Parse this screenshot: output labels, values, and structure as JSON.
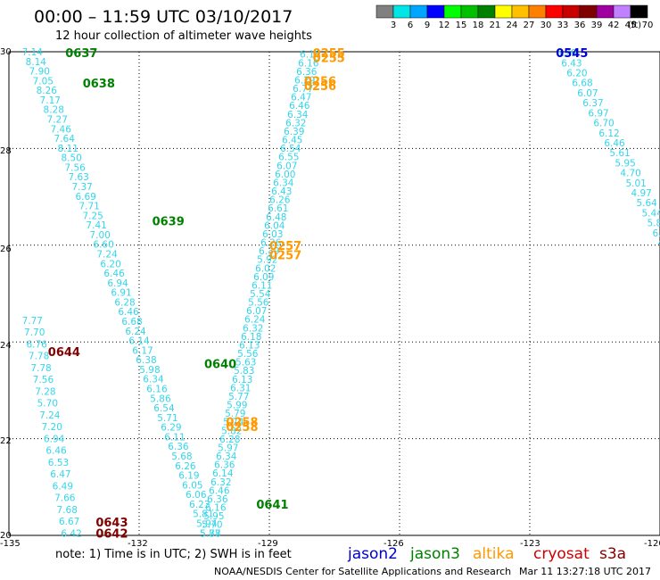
{
  "header": {
    "title": "00:00 – 11:59 UTC 03/10/2017",
    "subtitle": "12 hour collection of altimeter wave heights"
  },
  "colorbar": {
    "unit": "(ft)",
    "colors": [
      "#808080",
      "#00e5e5",
      "#00a5ff",
      "#0000ff",
      "#00ff00",
      "#00c000",
      "#008000",
      "#ffff00",
      "#ffc000",
      "#ff8000",
      "#ff0000",
      "#c80000",
      "#800000",
      "#a000a0",
      "#c080ff",
      "#000000"
    ],
    "ticks": [
      "3",
      "6",
      "9",
      "12",
      "15",
      "18",
      "21",
      "24",
      "27",
      "30",
      "33",
      "36",
      "39",
      "42",
      "45",
      "70"
    ]
  },
  "axes": {
    "y_ticks": [
      "30",
      "28",
      "26",
      "24",
      "22",
      "20"
    ],
    "x_ticks": [
      "-135",
      "-132",
      "-129",
      "-126",
      "-123",
      "-120"
    ]
  },
  "note": "note:  1) Time is in UTC;  2) SWH is in feet",
  "satellites": [
    {
      "name": "jason2",
      "color": "#0000cc"
    },
    {
      "name": "jason3",
      "color": "#008000"
    },
    {
      "name": "altika",
      "color": "#ff9900"
    },
    {
      "name": "cryosat",
      "color": "#cc0000"
    },
    {
      "name": "s3a",
      "color": "#800000"
    }
  ],
  "footer": {
    "credit": "NOAA/NESDIS Center for Satellite Applications and Research",
    "timestamp": "Mar 11 13:27:18 UTC 2017"
  },
  "map": {
    "track_value_color": "#33d6ea",
    "time_labels": [
      {
        "text": "0637",
        "sat": "jason3",
        "lon": -133.7,
        "lat": 29.98
      },
      {
        "text": "0638",
        "sat": "jason3",
        "lon": -133.3,
        "lat": 29.35
      },
      {
        "text": "0639",
        "sat": "jason3",
        "lon": -131.7,
        "lat": 26.5
      },
      {
        "text": "0640",
        "sat": "jason3",
        "lon": -130.5,
        "lat": 23.55
      },
      {
        "text": "0641",
        "sat": "jason3",
        "lon": -129.3,
        "lat": 20.65
      },
      {
        "text": "0644",
        "sat": "s3a",
        "lon": -134.1,
        "lat": 23.8
      },
      {
        "text": "0643",
        "sat": "s3a",
        "lon": -133.0,
        "lat": 20.28
      },
      {
        "text": "0642",
        "sat": "s3a",
        "lon": -133.0,
        "lat": 20.05
      },
      {
        "text": "0255",
        "sat": "altika",
        "lon": -128.0,
        "lat": 29.98
      },
      {
        "text": "0255",
        "sat": "altika",
        "lon": -128.0,
        "lat": 29.88
      },
      {
        "text": "0256",
        "sat": "altika",
        "lon": -128.2,
        "lat": 29.4
      },
      {
        "text": "0256",
        "sat": "altika",
        "lon": -128.2,
        "lat": 29.3
      },
      {
        "text": "0257",
        "sat": "altika",
        "lon": -129.0,
        "lat": 26.0
      },
      {
        "text": "0257",
        "sat": "altika",
        "lon": -129.0,
        "lat": 25.8
      },
      {
        "text": "0258",
        "sat": "altika",
        "lon": -130.0,
        "lat": 22.35
      },
      {
        "text": "0258",
        "sat": "altika",
        "lon": -130.0,
        "lat": 22.25
      },
      {
        "text": "0545",
        "sat": "jason2",
        "lon": -122.4,
        "lat": 29.98
      }
    ],
    "tracks": [
      {
        "name": "jason3-descending",
        "lon_start": -134.7,
        "lat_start": 30.0,
        "lon_end": -130.6,
        "lat_end": 20.05,
        "values": [
          "7.14",
          "8.14",
          "7.90",
          "7.05",
          "8.26",
          "7.17",
          "8.28",
          "7.27",
          "7.46",
          "7.64",
          "8.11",
          "8.50",
          "7.56",
          "7.63",
          "7.37",
          "6.69",
          "7.71",
          "7.25",
          "7.41",
          "7.00",
          "6.60",
          "7.24",
          "6.20",
          "6.46",
          "6.94",
          "6.91",
          "6.28",
          "6.46",
          "6.68",
          "6.24",
          "6.14",
          "6.17",
          "6.38",
          "5.98",
          "6.34",
          "6.16",
          "5.86",
          "6.54",
          "5.71",
          "6.29",
          "6.11",
          "6.36",
          "5.68",
          "6.26",
          "6.19",
          "6.05",
          "6.06",
          "6.23",
          "5.81",
          "5.94",
          "5.88"
        ]
      },
      {
        "name": "s3a-west",
        "lon_start": -134.7,
        "lat_start": 24.45,
        "lon_end": -133.8,
        "lat_end": 20.05,
        "values": [
          "7.77",
          "7.70",
          "6.76",
          "7.78",
          "7.78",
          "7.56",
          "7.28",
          "5.70",
          "7.24",
          "7.20",
          "6.94",
          "6.46",
          "6.53",
          "6.47",
          "6.49",
          "7.66",
          "7.68",
          "6.67",
          "6.42"
        ]
      },
      {
        "name": "altika-ascending",
        "lon_start": -128.3,
        "lat_start": 29.95,
        "lon_end": -130.6,
        "lat_end": 20.05,
        "values": [
          "6.18",
          "6.16",
          "6.36",
          "6.29",
          "6.77",
          "6.47",
          "6.46",
          "6.34",
          "6.32",
          "6.39",
          "6.45",
          "6.54",
          "6.55",
          "6.07",
          "6.00",
          "6.34",
          "6.43",
          "6.26",
          "6.61",
          "6.48",
          "6.04",
          "6.03",
          "6.26",
          "6.39",
          "5.92",
          "6.02",
          "6.09",
          "6.11",
          "5.54",
          "5.56",
          "6.07",
          "6.24",
          "6.32",
          "6.18",
          "6.13",
          "5.56",
          "5.63",
          "5.83",
          "6.13",
          "6.31",
          "5.77",
          "5.99",
          "5.79",
          "5.74",
          "5.82",
          "6.28",
          "5.97",
          "6.34",
          "6.36",
          "6.14",
          "6.32",
          "6.46",
          "6.36",
          "6.16",
          "5.95",
          "5.70",
          "5.77"
        ]
      },
      {
        "name": "jason2-descending",
        "lon_start": -122.4,
        "lat_start": 29.98,
        "lon_end": -120.05,
        "lat_end": 26.05,
        "values": [
          "6.29",
          "6.43",
          "6.20",
          "6.68",
          "6.07",
          "6.37",
          "6.97",
          "6.70",
          "6.12",
          "6.46",
          "5.61",
          "5.95",
          "4.70",
          "5.01",
          "4.97",
          "5.64",
          "5.44",
          "5.84",
          "6.08",
          "4.4"
        ]
      }
    ]
  }
}
